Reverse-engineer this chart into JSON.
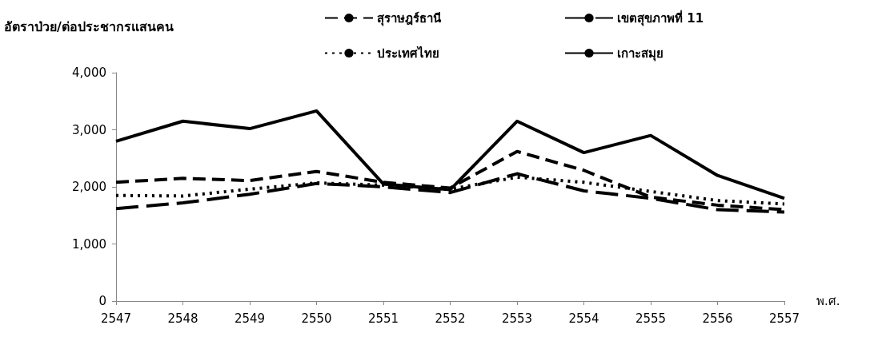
{
  "chart_data": {
    "type": "line",
    "ylabel": "อัตราป่วย/ต่อประชากรแสนคน",
    "xlabel": "พ.ศ.",
    "categories": [
      "2547",
      "2548",
      "2549",
      "2550",
      "2551",
      "2552",
      "2553",
      "2554",
      "2555",
      "2556",
      "2557"
    ],
    "series": [
      {
        "name": "สุราษฎร์ธานี",
        "color": "#000000",
        "line_style": "dashed",
        "values": [
          2080,
          2150,
          2110,
          2270,
          2080,
          1980,
          2620,
          2290,
          1820,
          1680,
          1600
        ]
      },
      {
        "name": "เขตสุขภาพที่ 11",
        "color": "#000000",
        "line_style": "dashed",
        "values": [
          1620,
          1720,
          1870,
          2060,
          2000,
          1900,
          2230,
          1930,
          1800,
          1600,
          1560
        ]
      },
      {
        "name": "ประเทศไทย",
        "color": "#000000",
        "line_style": "dotted",
        "values": [
          1850,
          1840,
          1960,
          2070,
          2030,
          1960,
          2170,
          2080,
          1920,
          1760,
          1700
        ]
      },
      {
        "name": "เกาะสมุย",
        "color": "#000000",
        "line_style": "solid",
        "values": [
          2800,
          3150,
          3020,
          3330,
          2050,
          1950,
          3150,
          2600,
          2900,
          2200,
          1800
        ]
      }
    ],
    "ylim": [
      0,
      4000
    ],
    "yticks": [
      0,
      {
        "value": 1000,
        "label": "1,000"
      },
      {
        "value": 2000,
        "label": "2,000"
      },
      {
        "value": 3000,
        "label": "3,000"
      },
      {
        "value": 4000,
        "label": "4,000"
      }
    ],
    "grid": false,
    "legend": "top",
    "marker": "none"
  }
}
